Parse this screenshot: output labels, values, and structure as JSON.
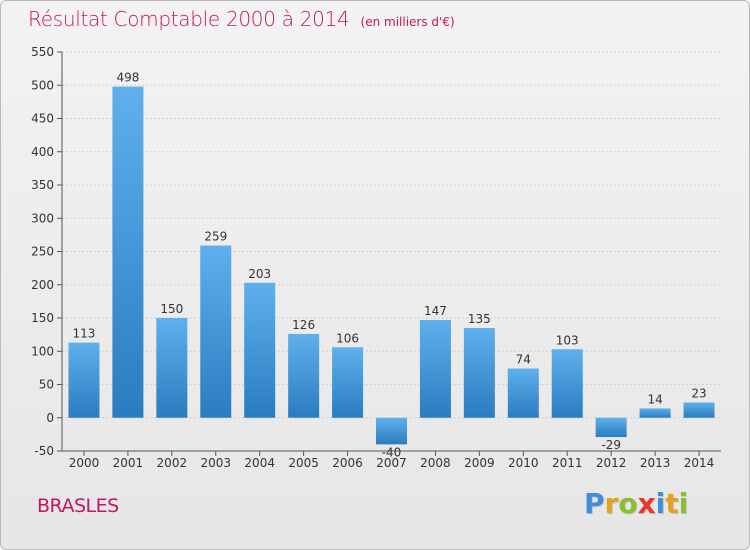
{
  "header": {
    "title": "Résultat Comptable 2000 à 2014",
    "subtitle": "(en milliers d'€)"
  },
  "footer": {
    "commune": "BRASLES",
    "logo_text": "Proxiti",
    "logo_letters": [
      {
        "ch": "P",
        "color": "#3f8fd8"
      },
      {
        "ch": "r",
        "color": "#e5a21c"
      },
      {
        "ch": "o",
        "color": "#8bbf2e"
      },
      {
        "ch": "x",
        "color": "#e23a2c"
      },
      {
        "ch": "i",
        "color": "#3f8fd8"
      },
      {
        "ch": "t",
        "color": "#e5a21c"
      },
      {
        "ch": "i",
        "color": "#8bbf2e"
      }
    ]
  },
  "chart_data": {
    "type": "bar",
    "categories": [
      "2000",
      "2001",
      "2002",
      "2003",
      "2004",
      "2005",
      "2006",
      "2007",
      "2008",
      "2009",
      "2010",
      "2011",
      "2012",
      "2013",
      "2014"
    ],
    "values": [
      113,
      498,
      150,
      259,
      203,
      126,
      106,
      -40,
      147,
      135,
      74,
      103,
      -29,
      14,
      23
    ],
    "ylim": [
      -50,
      550
    ],
    "yticks": [
      -50,
      0,
      50,
      100,
      150,
      200,
      250,
      300,
      350,
      400,
      450,
      500,
      550
    ],
    "grid": true,
    "colors": {
      "bar_light": "#5fb0ec",
      "bar_dark": "#2a7cc0",
      "grid": "#cfcfcf",
      "axis": "#555555"
    }
  }
}
